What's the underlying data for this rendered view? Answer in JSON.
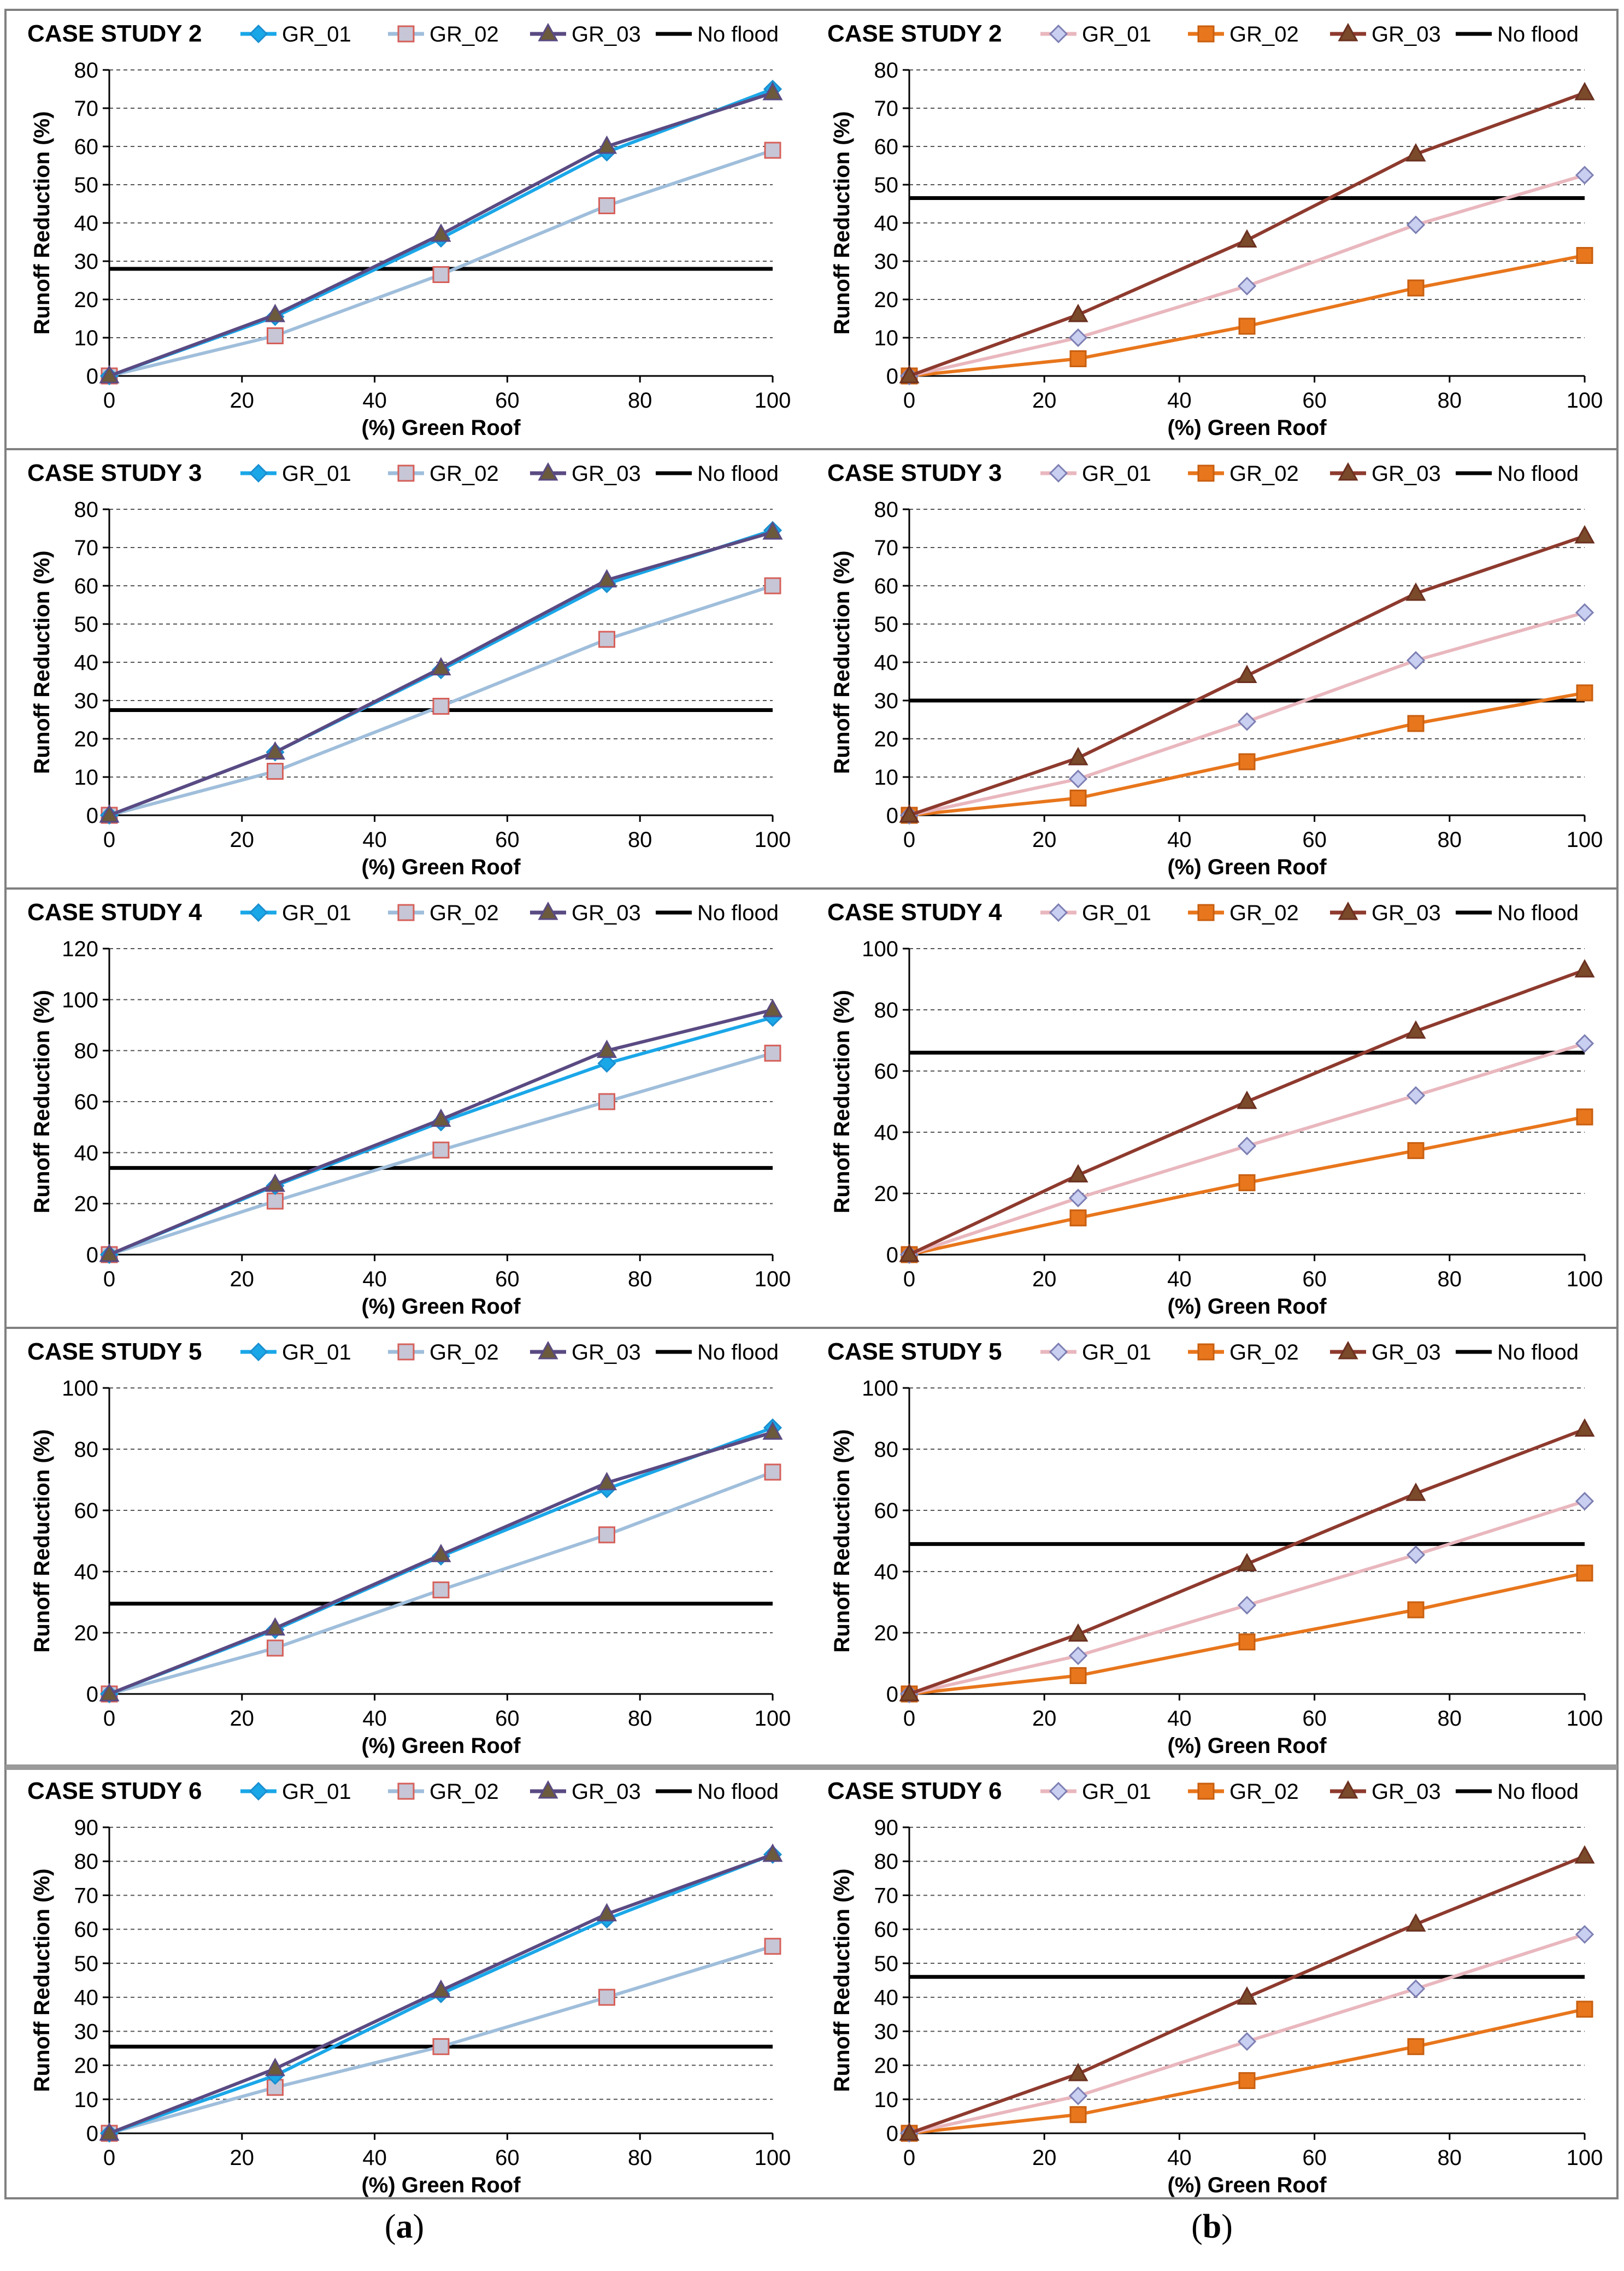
{
  "figure": {
    "xlabel": "(%) Green Roof",
    "ylabel": "Runoff Reduction (%)",
    "panel_a": "a",
    "panel_b": "b",
    "legend_labels": [
      "GR_01",
      "GR_02",
      "GR_03",
      "No flood"
    ]
  },
  "palettes": {
    "a": [
      "#1aa7e8",
      "#9fbedb",
      "#5a4a82",
      "#000000"
    ],
    "b": [
      "#e9b7be",
      "#e8761c",
      "#8e3a2e",
      "#000000"
    ]
  },
  "chart_data": [
    {
      "type": "line",
      "panel": "a",
      "title": "CASE STUDY 2",
      "x": [
        0,
        25,
        50,
        75,
        100
      ],
      "ylim": [
        0,
        80
      ],
      "ystep": 10,
      "series": [
        {
          "name": "GR_01",
          "values": [
            0,
            15.5,
            36,
            58.5,
            75
          ]
        },
        {
          "name": "GR_02",
          "values": [
            0,
            10.5,
            26.5,
            44.5,
            59
          ]
        },
        {
          "name": "GR_03",
          "values": [
            0,
            16,
            37,
            60,
            74
          ]
        },
        {
          "name": "No flood",
          "values": [
            28,
            28,
            28,
            28,
            28
          ]
        }
      ]
    },
    {
      "type": "line",
      "panel": "b",
      "title": "CASE STUDY 2",
      "x": [
        0,
        25,
        50,
        75,
        100
      ],
      "ylim": [
        0,
        80
      ],
      "ystep": 10,
      "series": [
        {
          "name": "GR_01",
          "values": [
            0,
            10,
            23.5,
            39.5,
            52.5
          ]
        },
        {
          "name": "GR_02",
          "values": [
            0,
            4.5,
            13,
            23,
            31.5
          ]
        },
        {
          "name": "GR_03",
          "values": [
            0,
            16,
            35.5,
            58,
            74
          ]
        },
        {
          "name": "No flood",
          "values": [
            46.5,
            46.5,
            46.5,
            46.5,
            46.5
          ]
        }
      ]
    },
    {
      "type": "line",
      "panel": "a",
      "title": "CASE STUDY 3",
      "x": [
        0,
        25,
        50,
        75,
        100
      ],
      "ylim": [
        0,
        80
      ],
      "ystep": 10,
      "series": [
        {
          "name": "GR_01",
          "values": [
            0,
            16.5,
            38,
            60.5,
            74.5
          ]
        },
        {
          "name": "GR_02",
          "values": [
            0,
            11.5,
            28.5,
            46,
            60
          ]
        },
        {
          "name": "GR_03",
          "values": [
            0,
            16.5,
            38.5,
            61.5,
            74
          ]
        },
        {
          "name": "No flood",
          "values": [
            27.5,
            27.5,
            27.5,
            27.5,
            27.5
          ]
        }
      ]
    },
    {
      "type": "line",
      "panel": "b",
      "title": "CASE STUDY 3",
      "x": [
        0,
        25,
        50,
        75,
        100
      ],
      "ylim": [
        0,
        80
      ],
      "ystep": 10,
      "series": [
        {
          "name": "GR_01",
          "values": [
            0,
            9.5,
            24.5,
            40.5,
            53
          ]
        },
        {
          "name": "GR_02",
          "values": [
            0,
            4.5,
            14,
            24,
            32
          ]
        },
        {
          "name": "GR_03",
          "values": [
            0,
            15,
            36.5,
            58,
            73
          ]
        },
        {
          "name": "No flood",
          "values": [
            30,
            30,
            30,
            30,
            30
          ]
        }
      ]
    },
    {
      "type": "line",
      "panel": "a",
      "title": "CASE STUDY 4",
      "x": [
        0,
        25,
        50,
        75,
        100
      ],
      "ylim": [
        0,
        120
      ],
      "ystep": 20,
      "series": [
        {
          "name": "GR_01",
          "values": [
            0,
            27,
            52,
            75,
            93
          ]
        },
        {
          "name": "GR_02",
          "values": [
            0,
            21,
            41,
            60,
            79
          ]
        },
        {
          "name": "GR_03",
          "values": [
            0,
            27.5,
            53,
            80,
            96
          ]
        },
        {
          "name": "No flood",
          "values": [
            34,
            34,
            34,
            34,
            34
          ]
        }
      ]
    },
    {
      "type": "line",
      "panel": "b",
      "title": "CASE STUDY 4",
      "x": [
        0,
        25,
        50,
        75,
        100
      ],
      "ylim": [
        0,
        100
      ],
      "ystep": 20,
      "series": [
        {
          "name": "GR_01",
          "values": [
            0,
            18.5,
            35.5,
            52,
            69
          ]
        },
        {
          "name": "GR_02",
          "values": [
            0,
            12,
            23.5,
            34,
            45
          ]
        },
        {
          "name": "GR_03",
          "values": [
            0,
            26,
            50,
            73,
            93
          ]
        },
        {
          "name": "No flood",
          "values": [
            66,
            66,
            66,
            66,
            66
          ]
        }
      ]
    },
    {
      "type": "line",
      "panel": "a",
      "title": "CASE STUDY 5",
      "x": [
        0,
        25,
        50,
        75,
        100
      ],
      "ylim": [
        0,
        100
      ],
      "ystep": 20,
      "series": [
        {
          "name": "GR_01",
          "values": [
            0,
            21,
            45,
            67,
            87
          ]
        },
        {
          "name": "GR_02",
          "values": [
            0,
            15,
            34,
            52,
            72.5
          ]
        },
        {
          "name": "GR_03",
          "values": [
            0,
            21.5,
            45.5,
            69,
            85.5
          ]
        },
        {
          "name": "No flood",
          "values": [
            29.5,
            29.5,
            29.5,
            29.5,
            29.5
          ]
        }
      ]
    },
    {
      "type": "line",
      "panel": "b",
      "title": "CASE STUDY 5",
      "x": [
        0,
        25,
        50,
        75,
        100
      ],
      "ylim": [
        0,
        100
      ],
      "ystep": 20,
      "series": [
        {
          "name": "GR_01",
          "values": [
            0,
            12.5,
            29,
            45.5,
            63
          ]
        },
        {
          "name": "GR_02",
          "values": [
            0,
            6,
            17,
            27.5,
            39.5
          ]
        },
        {
          "name": "GR_03",
          "values": [
            0,
            19.5,
            42.5,
            65.5,
            86.5
          ]
        },
        {
          "name": "No flood",
          "values": [
            49,
            49,
            49,
            49,
            49
          ]
        }
      ]
    },
    {
      "type": "line",
      "panel": "a",
      "title": "CASE STUDY 6",
      "x": [
        0,
        25,
        50,
        75,
        100
      ],
      "ylim": [
        0,
        90
      ],
      "ystep": 10,
      "series": [
        {
          "name": "GR_01",
          "values": [
            0,
            17,
            41,
            63,
            82
          ]
        },
        {
          "name": "GR_02",
          "values": [
            0,
            13.5,
            25.5,
            40,
            55
          ]
        },
        {
          "name": "GR_03",
          "values": [
            0,
            19,
            42,
            64.5,
            82
          ]
        },
        {
          "name": "No flood",
          "values": [
            25.5,
            25.5,
            25.5,
            25.5,
            25.5
          ]
        }
      ]
    },
    {
      "type": "line",
      "panel": "b",
      "title": "CASE STUDY 6",
      "x": [
        0,
        25,
        50,
        75,
        100
      ],
      "ylim": [
        0,
        90
      ],
      "ystep": 10,
      "series": [
        {
          "name": "GR_01",
          "values": [
            0,
            11,
            27,
            42.5,
            58.5
          ]
        },
        {
          "name": "GR_02",
          "values": [
            0,
            5.5,
            15.5,
            25.5,
            36.5
          ]
        },
        {
          "name": "GR_03",
          "values": [
            0,
            17.5,
            40,
            61.5,
            81.5
          ]
        },
        {
          "name": "No flood",
          "values": [
            46,
            46,
            46,
            46,
            46
          ]
        }
      ]
    }
  ]
}
